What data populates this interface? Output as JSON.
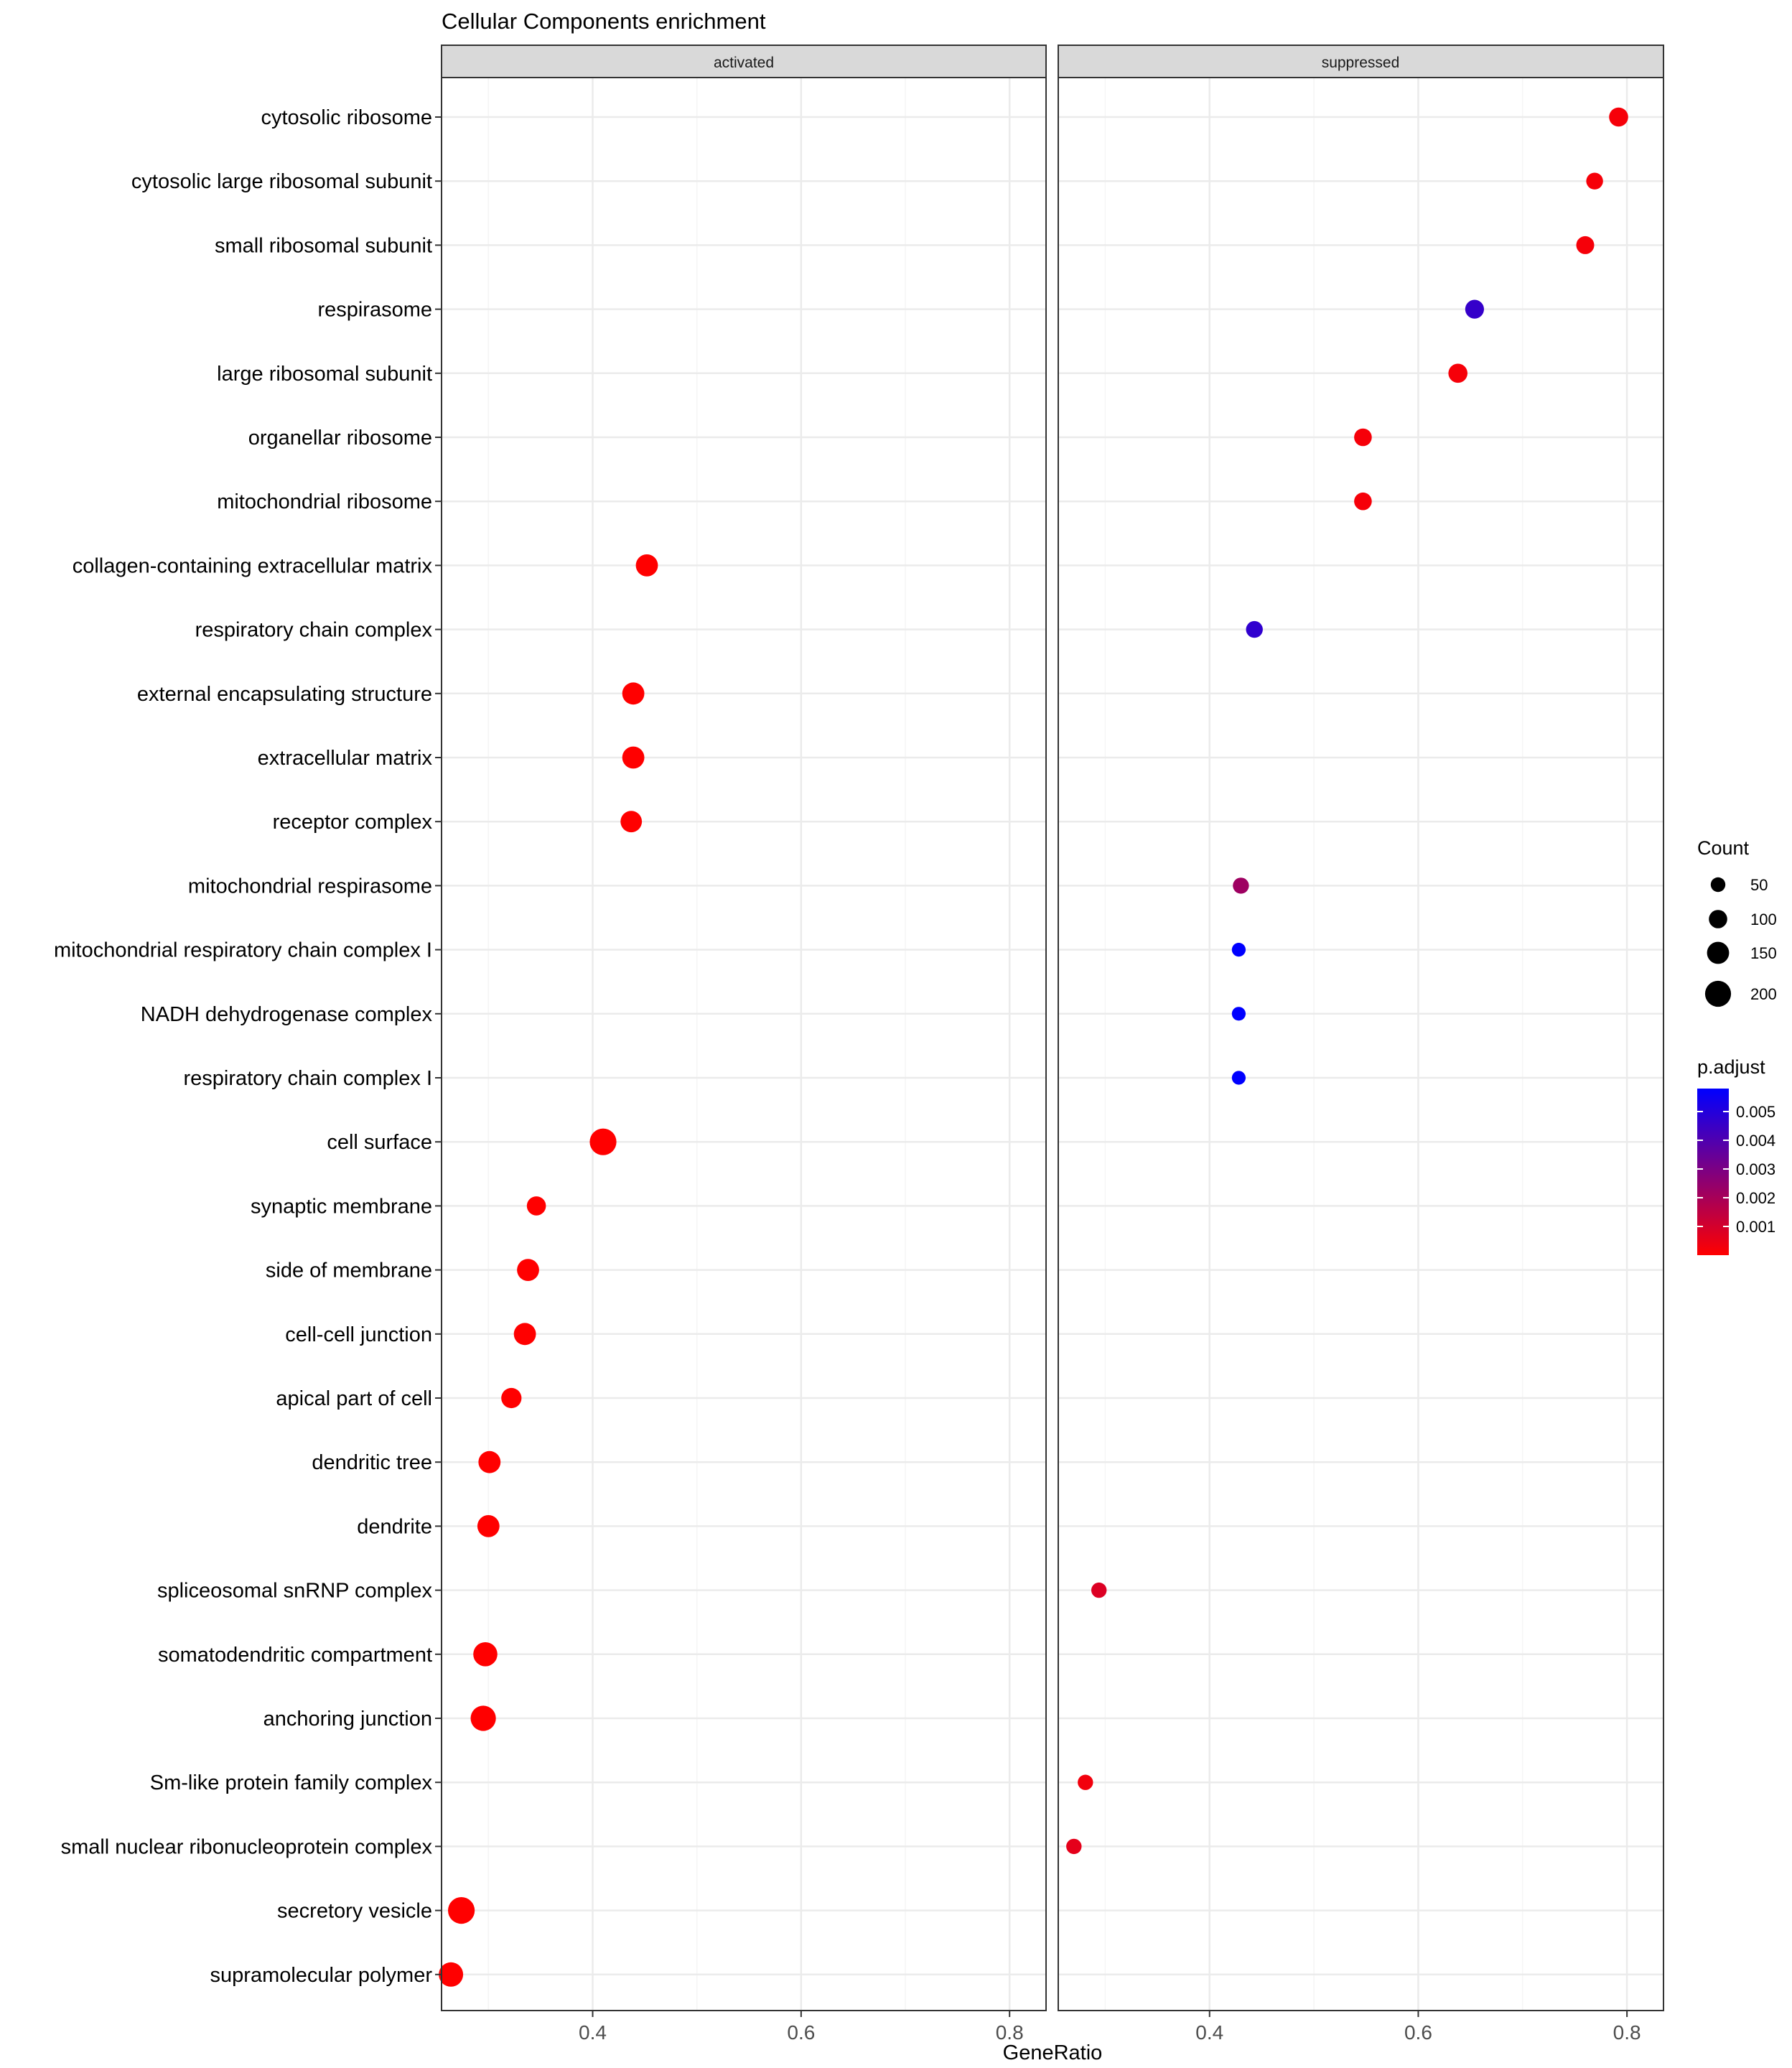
{
  "chart_data": {
    "type": "scatter",
    "title": "Cellular Components enrichment",
    "xlabel": "GeneRatio",
    "ylabel": "",
    "xlim": [
      0.255,
      0.835
    ],
    "x_ticks": [
      0.4,
      0.6,
      0.8
    ],
    "x_tick_labels": [
      "0.4",
      "0.6",
      "0.8"
    ],
    "grid": true,
    "facets": [
      "activated",
      "suppressed"
    ],
    "categories": [
      "cytosolic ribosome",
      "cytosolic large ribosomal subunit",
      "small ribosomal subunit",
      "respirasome",
      "large ribosomal subunit",
      "organellar ribosome",
      "mitochondrial ribosome",
      "collagen-containing extracellular matrix",
      "respiratory chain complex",
      "external encapsulating structure",
      "extracellular matrix",
      "receptor complex",
      "mitochondrial respirasome",
      "mitochondrial respiratory chain complex I",
      "NADH dehydrogenase complex",
      "respiratory chain complex I",
      "cell surface",
      "synaptic membrane",
      "side of membrane",
      "cell-cell junction",
      "apical part of cell",
      "dendritic tree",
      "dendrite",
      "spliceosomal snRNP complex",
      "somatodendritic compartment",
      "anchoring junction",
      "Sm-like protein family complex",
      "small nuclear ribonucleoprotein complex",
      "secretory vesicle",
      "supramolecular polymer"
    ],
    "series": [
      {
        "name": "activated",
        "points": [
          {
            "category": "collagen-containing extracellular matrix",
            "x": 0.452,
            "count": 150,
            "p_adjust": 0.0
          },
          {
            "category": "external encapsulating structure",
            "x": 0.439,
            "count": 150,
            "p_adjust": 0.0
          },
          {
            "category": "extracellular matrix",
            "x": 0.439,
            "count": 150,
            "p_adjust": 0.0
          },
          {
            "category": "receptor complex",
            "x": 0.437,
            "count": 140,
            "p_adjust": 0.0
          },
          {
            "category": "cell surface",
            "x": 0.41,
            "count": 210,
            "p_adjust": 0.0
          },
          {
            "category": "synaptic membrane",
            "x": 0.346,
            "count": 110,
            "p_adjust": 0.0
          },
          {
            "category": "side of membrane",
            "x": 0.338,
            "count": 150,
            "p_adjust": 0.0
          },
          {
            "category": "cell-cell junction",
            "x": 0.335,
            "count": 150,
            "p_adjust": 0.0
          },
          {
            "category": "apical part of cell",
            "x": 0.322,
            "count": 125,
            "p_adjust": 0.0
          },
          {
            "category": "dendritic tree",
            "x": 0.301,
            "count": 150,
            "p_adjust": 0.0
          },
          {
            "category": "dendrite",
            "x": 0.3,
            "count": 150,
            "p_adjust": 0.0
          },
          {
            "category": "somatodendritic compartment",
            "x": 0.297,
            "count": 175,
            "p_adjust": 0.0
          },
          {
            "category": "anchoring junction",
            "x": 0.295,
            "count": 190,
            "p_adjust": 0.0
          },
          {
            "category": "secretory vesicle",
            "x": 0.274,
            "count": 210,
            "p_adjust": 0.0
          },
          {
            "category": "supramolecular polymer",
            "x": 0.264,
            "count": 180,
            "p_adjust": 0.0
          }
        ]
      },
      {
        "name": "suppressed",
        "points": [
          {
            "category": "cytosolic ribosome",
            "x": 0.792,
            "count": 110,
            "p_adjust": 0.0002
          },
          {
            "category": "cytosolic large ribosomal subunit",
            "x": 0.769,
            "count": 80,
            "p_adjust": 0.0002
          },
          {
            "category": "small ribosomal subunit",
            "x": 0.76,
            "count": 95,
            "p_adjust": 0.0002
          },
          {
            "category": "respirasome",
            "x": 0.654,
            "count": 105,
            "p_adjust": 0.0046
          },
          {
            "category": "large ribosomal subunit",
            "x": 0.638,
            "count": 110,
            "p_adjust": 0.0002
          },
          {
            "category": "organellar ribosome",
            "x": 0.547,
            "count": 90,
            "p_adjust": 0.0002
          },
          {
            "category": "mitochondrial ribosome",
            "x": 0.547,
            "count": 90,
            "p_adjust": 0.0002
          },
          {
            "category": "respiratory chain complex",
            "x": 0.443,
            "count": 80,
            "p_adjust": 0.0047
          },
          {
            "category": "mitochondrial respirasome",
            "x": 0.43,
            "count": 70,
            "p_adjust": 0.0022
          },
          {
            "category": "mitochondrial respiratory chain complex I",
            "x": 0.428,
            "count": 40,
            "p_adjust": 0.0058
          },
          {
            "category": "NADH dehydrogenase complex",
            "x": 0.428,
            "count": 40,
            "p_adjust": 0.0058
          },
          {
            "category": "respiratory chain complex I",
            "x": 0.428,
            "count": 40,
            "p_adjust": 0.0058
          },
          {
            "category": "spliceosomal snRNP complex",
            "x": 0.294,
            "count": 60,
            "p_adjust": 0.0008
          },
          {
            "category": "Sm-like protein family complex",
            "x": 0.281,
            "count": 60,
            "p_adjust": 0.0003
          },
          {
            "category": "small nuclear ribonucleoprotein complex",
            "x": 0.27,
            "count": 60,
            "p_adjust": 0.0006
          }
        ]
      }
    ],
    "legend": {
      "placement": "right",
      "size_title": "Count",
      "size_values": [
        50,
        100,
        150,
        200
      ],
      "size_labels": [
        "50",
        "100",
        "150",
        "200"
      ],
      "color_title": "p.adjust",
      "color_ticks": [
        0.005,
        0.004,
        0.003,
        0.002,
        0.001
      ],
      "color_tick_labels": [
        "0.005",
        "0.004",
        "0.003",
        "0.002",
        "0.001"
      ],
      "color_range": [
        0.0,
        0.0058
      ],
      "color_low": "#FF0000",
      "color_high": "#0000FF"
    },
    "colors": {
      "strip_fill": "#D9D9D9",
      "strip_border": "#333333",
      "grid_major": "#EBEBEB",
      "grid_minor": "#F5F5F5",
      "panel_border": "#333333",
      "text": "#000000",
      "tick_text": "#4D4D4D"
    }
  }
}
